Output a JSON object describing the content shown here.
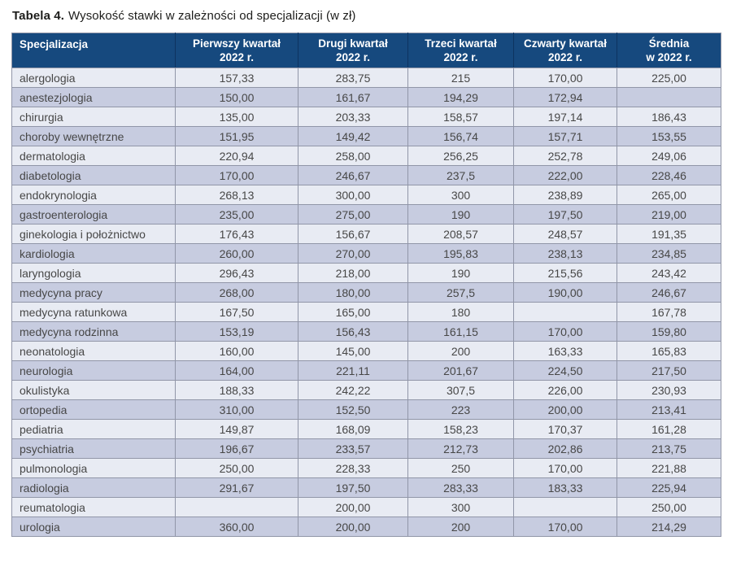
{
  "title": {
    "prefix": "Tabela 4.",
    "text": "Wysokość stawki w zależności od specjalizacji (w zł)"
  },
  "table": {
    "headers": [
      {
        "line1": "Specjalizacja",
        "line2": ""
      },
      {
        "line1": "Pierwszy kwartał",
        "line2": "2022 r."
      },
      {
        "line1": "Drugi kwartał",
        "line2": "2022 r."
      },
      {
        "line1": "Trzeci kwartał",
        "line2": "2022 r."
      },
      {
        "line1": "Czwarty kwartał",
        "line2": "2022 r."
      },
      {
        "line1": "Średnia",
        "line2": "w 2022 r."
      }
    ],
    "rows": [
      {
        "specjalizacja": "alergologia",
        "values": [
          "157,33",
          "283,75",
          "215",
          "170,00",
          "225,00"
        ]
      },
      {
        "specjalizacja": "anestezjologia",
        "values": [
          "150,00",
          "161,67",
          "194,29",
          "172,94",
          ""
        ]
      },
      {
        "specjalizacja": "chirurgia",
        "values": [
          "135,00",
          "203,33",
          "158,57",
          "197,14",
          "186,43"
        ]
      },
      {
        "specjalizacja": "choroby wewnętrzne",
        "values": [
          "151,95",
          "149,42",
          "156,74",
          "157,71",
          "153,55"
        ]
      },
      {
        "specjalizacja": "dermatologia",
        "values": [
          "220,94",
          "258,00",
          "256,25",
          "252,78",
          "249,06"
        ]
      },
      {
        "specjalizacja": "diabetologia",
        "values": [
          "170,00",
          "246,67",
          "237,5",
          "222,00",
          "228,46"
        ]
      },
      {
        "specjalizacja": "endokrynologia",
        "values": [
          "268,13",
          "300,00",
          "300",
          "238,89",
          "265,00"
        ]
      },
      {
        "specjalizacja": "gastroenterologia",
        "values": [
          "235,00",
          "275,00",
          "190",
          "197,50",
          "219,00"
        ]
      },
      {
        "specjalizacja": "ginekologia i położnictwo",
        "values": [
          "176,43",
          "156,67",
          "208,57",
          "248,57",
          "191,35"
        ]
      },
      {
        "specjalizacja": "kardiologia",
        "values": [
          "260,00",
          "270,00",
          "195,83",
          "238,13",
          "234,85"
        ]
      },
      {
        "specjalizacja": "laryngologia",
        "values": [
          "296,43",
          "218,00",
          "190",
          "215,56",
          "243,42"
        ]
      },
      {
        "specjalizacja": "medycyna pracy",
        "values": [
          "268,00",
          "180,00",
          "257,5",
          "190,00",
          "246,67"
        ]
      },
      {
        "specjalizacja": "medycyna ratunkowa",
        "values": [
          "167,50",
          "165,00",
          "180",
          "",
          "167,78"
        ]
      },
      {
        "specjalizacja": "medycyna rodzinna",
        "values": [
          "153,19",
          "156,43",
          "161,15",
          "170,00",
          "159,80"
        ]
      },
      {
        "specjalizacja": "neonatologia",
        "values": [
          "160,00",
          "145,00",
          "200",
          "163,33",
          "165,83"
        ]
      },
      {
        "specjalizacja": "neurologia",
        "values": [
          "164,00",
          "221,11",
          "201,67",
          "224,50",
          "217,50"
        ]
      },
      {
        "specjalizacja": "okulistyka",
        "values": [
          "188,33",
          "242,22",
          "307,5",
          "226,00",
          "230,93"
        ]
      },
      {
        "specjalizacja": "ortopedia",
        "values": [
          "310,00",
          "152,50",
          "223",
          "200,00",
          "213,41"
        ]
      },
      {
        "specjalizacja": "pediatria",
        "values": [
          "149,87",
          "168,09",
          "158,23",
          "170,37",
          "161,28"
        ]
      },
      {
        "specjalizacja": "psychiatria",
        "values": [
          "196,67",
          "233,57",
          "212,73",
          "202,86",
          "213,75"
        ]
      },
      {
        "specjalizacja": "pulmonologia",
        "values": [
          "250,00",
          "228,33",
          "250",
          "170,00",
          "221,88"
        ]
      },
      {
        "specjalizacja": "radiologia",
        "values": [
          "291,67",
          "197,50",
          "283,33",
          "183,33",
          "225,94"
        ]
      },
      {
        "specjalizacja": "reumatologia",
        "values": [
          "",
          "200,00",
          "300",
          "",
          "250,00"
        ]
      },
      {
        "specjalizacja": "urologia",
        "values": [
          "360,00",
          "200,00",
          "200",
          "170,00",
          "214,29"
        ]
      }
    ]
  },
  "colors": {
    "header_bg": "#16497e",
    "header_divider": "#0d3360",
    "row_light": "#e8ebf3",
    "row_dark": "#c7cce0",
    "grid": "#9196a8",
    "text": "#474747",
    "title": "#1d1d1b",
    "header_text": "#ffffff"
  }
}
